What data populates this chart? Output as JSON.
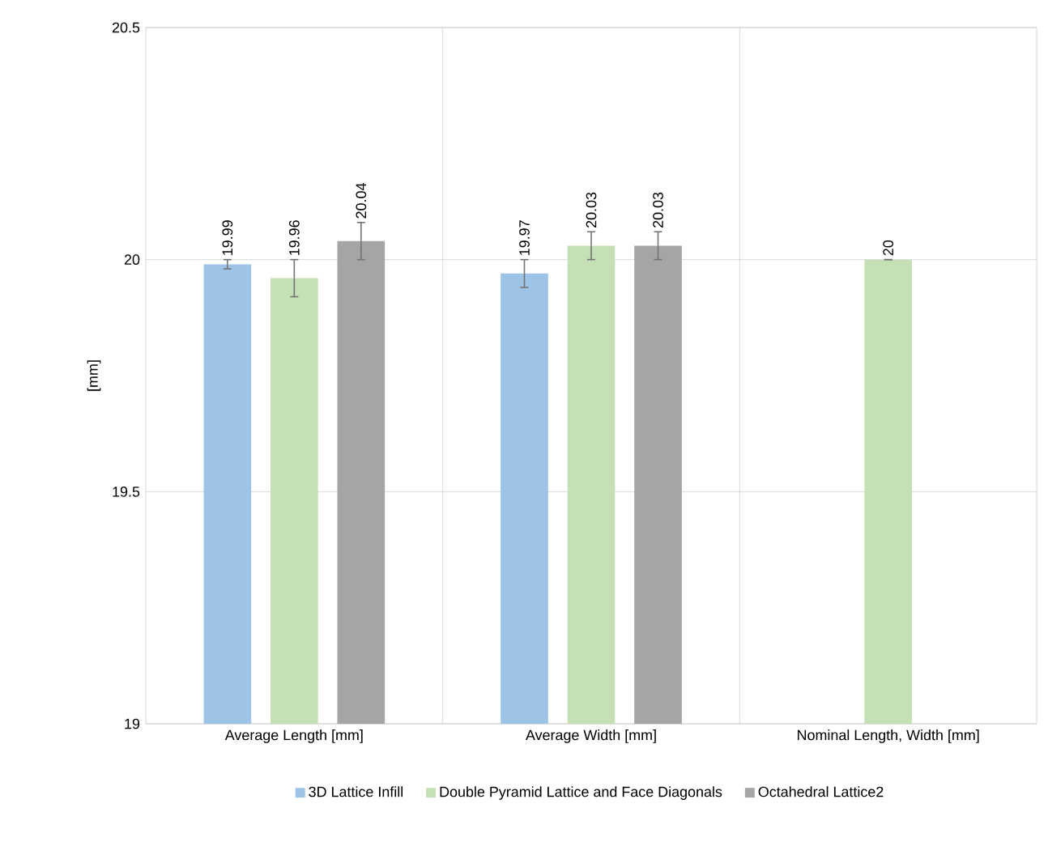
{
  "chart_data": {
    "type": "bar",
    "ylabel": "[mm]",
    "categories": [
      "Average Length [mm]",
      "Average Width [mm]",
      "Nominal Length, Width [mm]"
    ],
    "series": [
      {
        "name": "3D Lattice Infill",
        "color": "#9dc3e6",
        "values": [
          19.99,
          19.97,
          null
        ],
        "errors": [
          0.01,
          0.03,
          null
        ]
      },
      {
        "name": "Double Pyramid Lattice and Face Diagonals",
        "color": "#c5e0b4",
        "values": [
          19.96,
          20.03,
          20
        ],
        "errors": [
          0.04,
          0.03,
          null
        ]
      },
      {
        "name": "Octahedral Lattice2",
        "color": "#a5a5a5",
        "values": [
          20.04,
          20.03,
          null
        ],
        "errors": [
          0.04,
          0.03,
          null
        ]
      }
    ],
    "ylim": [
      19,
      20.5
    ],
    "yticks": [
      19,
      19.5,
      20,
      20.5
    ],
    "grid": true,
    "legend": "bottom",
    "data_labels": true
  }
}
